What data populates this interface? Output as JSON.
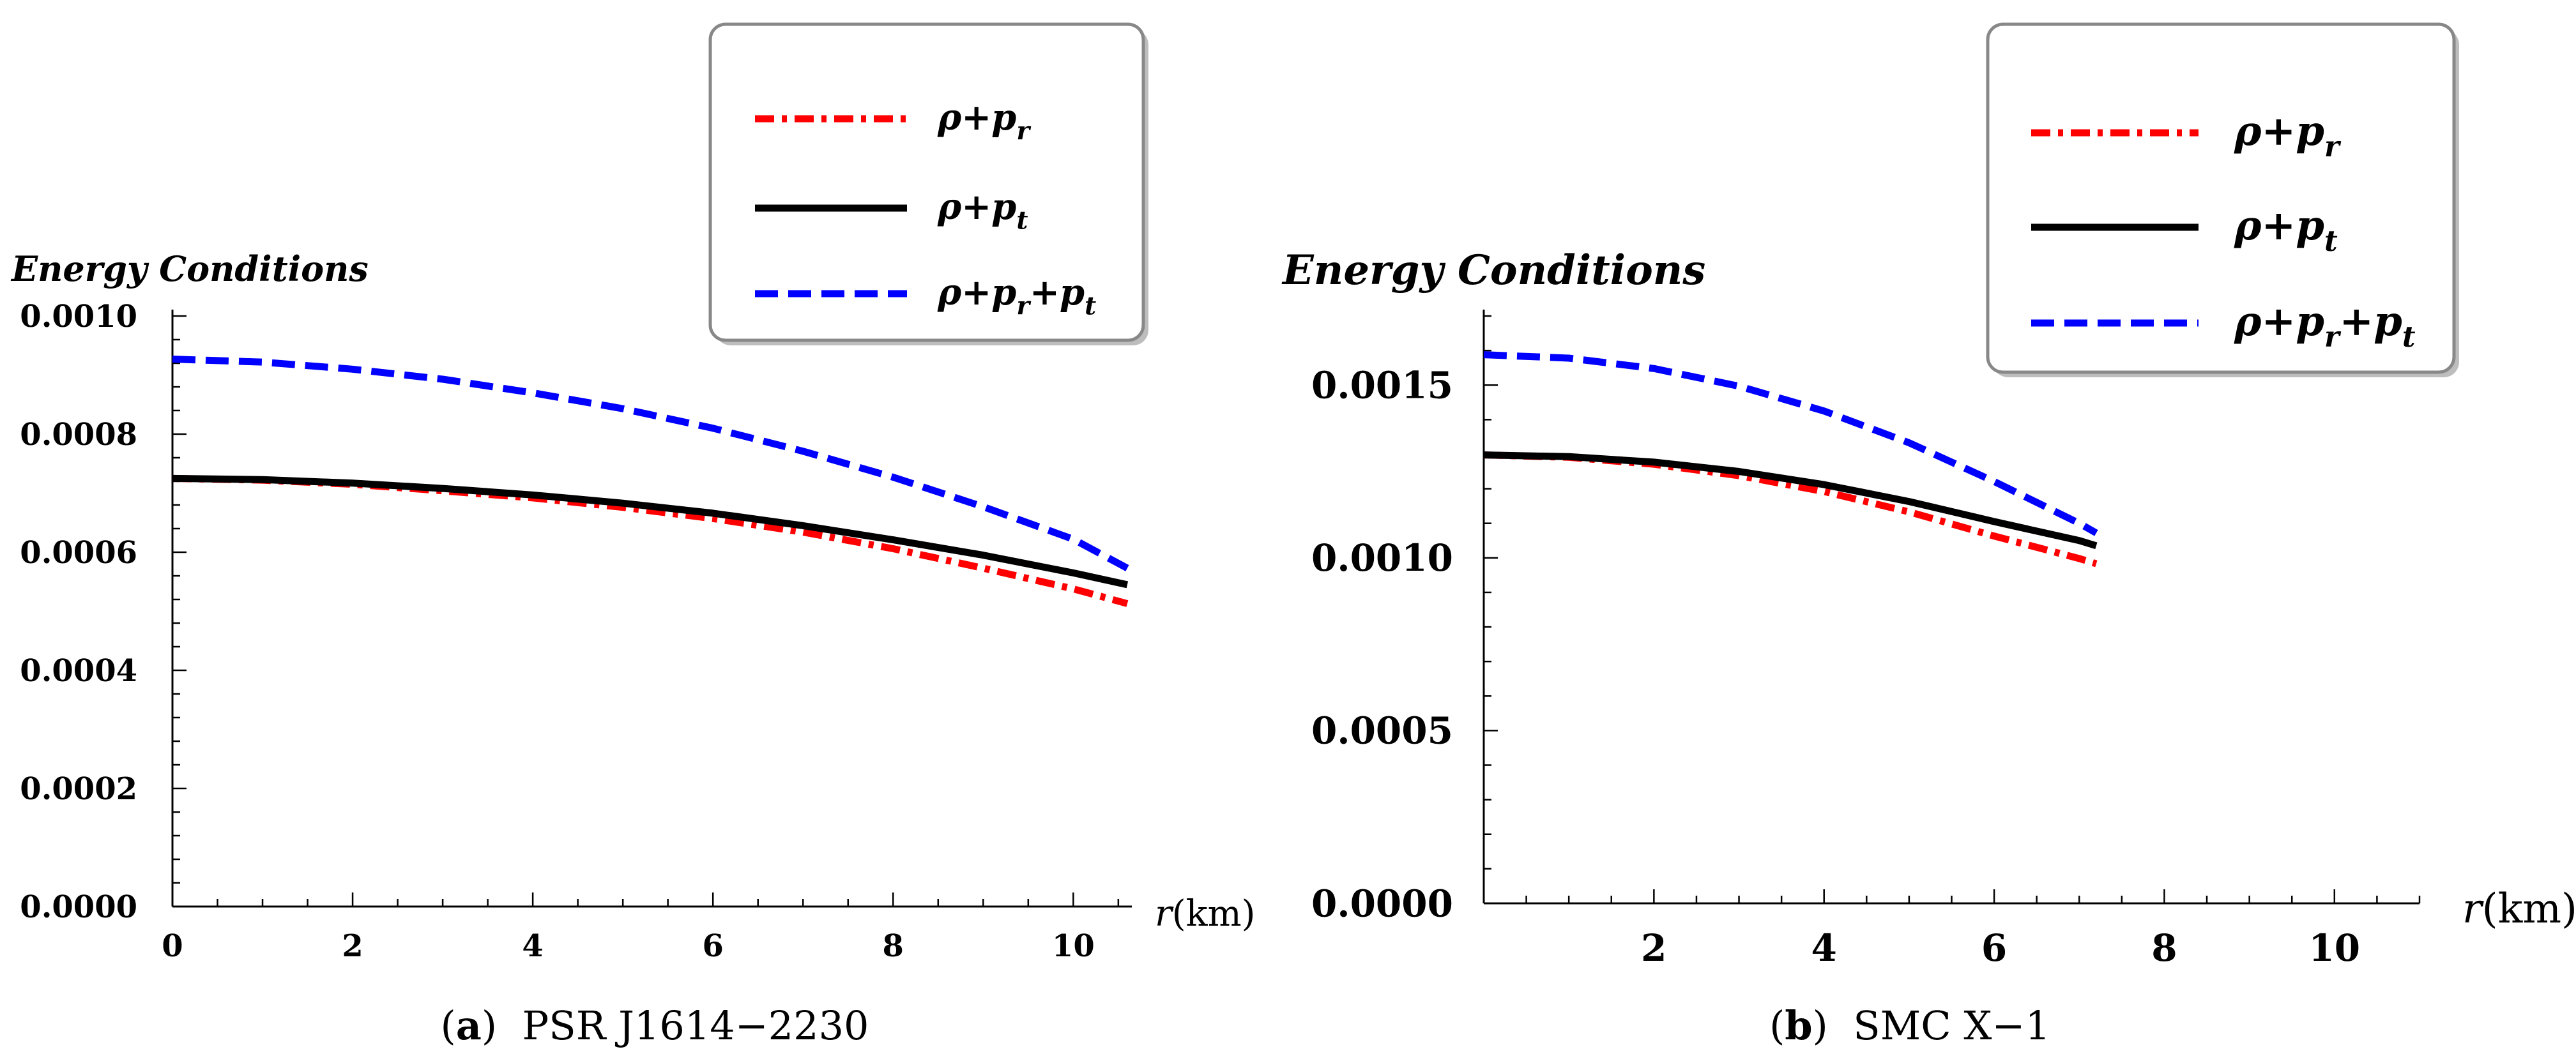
{
  "chart_data": [
    {
      "type": "line",
      "panel": "a",
      "caption_letter": "a",
      "caption_label": "PSR J1614−2230",
      "ylabel": "Energy Conditions",
      "xlabel": "r",
      "xlabel_unit": "(km)",
      "xlim": [
        0,
        10.65
      ],
      "ylim": [
        0,
        0.001
      ],
      "xticks": [
        0,
        2,
        4,
        6,
        8,
        10
      ],
      "xtick_labels": [
        "0",
        "2",
        "4",
        "6",
        "8",
        "10"
      ],
      "yticks": [
        0,
        0.0002,
        0.0004,
        0.0006,
        0.0008,
        0.001
      ],
      "ytick_labels": [
        "0.0000",
        "0.0002",
        "0.0004",
        "0.0006",
        "0.0008",
        "0.0010"
      ],
      "legend_position": "top-right",
      "series": [
        {
          "name": "ρ+p_r",
          "name_base": "ρ+p",
          "name_sub": "r",
          "color": "#ff0000",
          "style": "dashdot",
          "x": [
            0,
            1,
            2,
            3,
            4,
            5,
            6,
            7,
            8,
            9,
            10,
            10.6
          ],
          "y": [
            0.000725,
            0.000722,
            0.000715,
            0.000704,
            0.000692,
            0.000676,
            0.000657,
            0.000634,
            0.000606,
            0.000573,
            0.000538,
            0.000513
          ]
        },
        {
          "name": "ρ+p_t",
          "name_base": "ρ+p",
          "name_sub": "t",
          "color": "#000000",
          "style": "solid",
          "x": [
            0,
            1,
            2,
            3,
            4,
            5,
            6,
            7,
            8,
            9,
            10,
            10.6
          ],
          "y": [
            0.000725,
            0.000723,
            0.000717,
            0.000708,
            0.000697,
            0.000683,
            0.000666,
            0.000645,
            0.000621,
            0.000595,
            0.000565,
            0.000545
          ]
        },
        {
          "name": "ρ+p_r+p_t",
          "name_base": "ρ+p",
          "name_sub": "r",
          "name_mid": "+p",
          "name_sub2": "t",
          "color": "#0000ff",
          "style": "dashed",
          "x": [
            0,
            1,
            2,
            3,
            4,
            5,
            6,
            7,
            8,
            9,
            10,
            10.6
          ],
          "y": [
            0.000927,
            0.000922,
            0.00091,
            0.000893,
            0.00087,
            0.000843,
            0.00081,
            0.000771,
            0.000727,
            0.000677,
            0.000622,
            0.000573
          ]
        }
      ]
    },
    {
      "type": "line",
      "panel": "b",
      "caption_letter": "b",
      "caption_label": "SMC X−1",
      "ylabel": "Energy Conditions",
      "xlabel": "r",
      "xlabel_unit": "(km)",
      "xlim": [
        0,
        11
      ],
      "ylim": [
        0,
        0.0017
      ],
      "xticks": [
        2,
        4,
        6,
        8,
        10
      ],
      "xtick_labels": [
        "2",
        "4",
        "6",
        "8",
        "10"
      ],
      "yticks": [
        0,
        0.0005,
        0.001,
        0.0015
      ],
      "ytick_labels": [
        "0.0000",
        "0.0005",
        "0.0010",
        "0.0015"
      ],
      "legend_position": "top-right",
      "series": [
        {
          "name": "ρ+p_r",
          "name_base": "ρ+p",
          "name_sub": "r",
          "color": "#ff0000",
          "style": "dashdot",
          "x": [
            0,
            1,
            2,
            3,
            4,
            5,
            6,
            7,
            7.2
          ],
          "y": [
            0.001298,
            0.001291,
            0.001271,
            0.001238,
            0.001192,
            0.001133,
            0.001063,
            0.000998,
            0.000983
          ]
        },
        {
          "name": "ρ+p_t",
          "name_base": "ρ+p",
          "name_sub": "t",
          "color": "#000000",
          "style": "solid",
          "x": [
            0,
            1,
            2,
            3,
            4,
            5,
            6,
            7,
            7.2
          ],
          "y": [
            0.001298,
            0.001293,
            0.001277,
            0.00125,
            0.001212,
            0.001163,
            0.001105,
            0.00105,
            0.001035
          ]
        },
        {
          "name": "ρ+p_r+p_t",
          "name_base": "ρ+p",
          "name_sub": "r",
          "name_mid": "+p",
          "name_sub2": "t",
          "color": "#0000ff",
          "style": "dashed",
          "x": [
            0,
            1,
            2,
            3,
            4,
            5,
            6,
            7,
            7.2
          ],
          "y": [
            0.001588,
            0.001578,
            0.001548,
            0.001497,
            0.001425,
            0.001333,
            0.001221,
            0.0011,
            0.001072
          ]
        }
      ]
    }
  ]
}
